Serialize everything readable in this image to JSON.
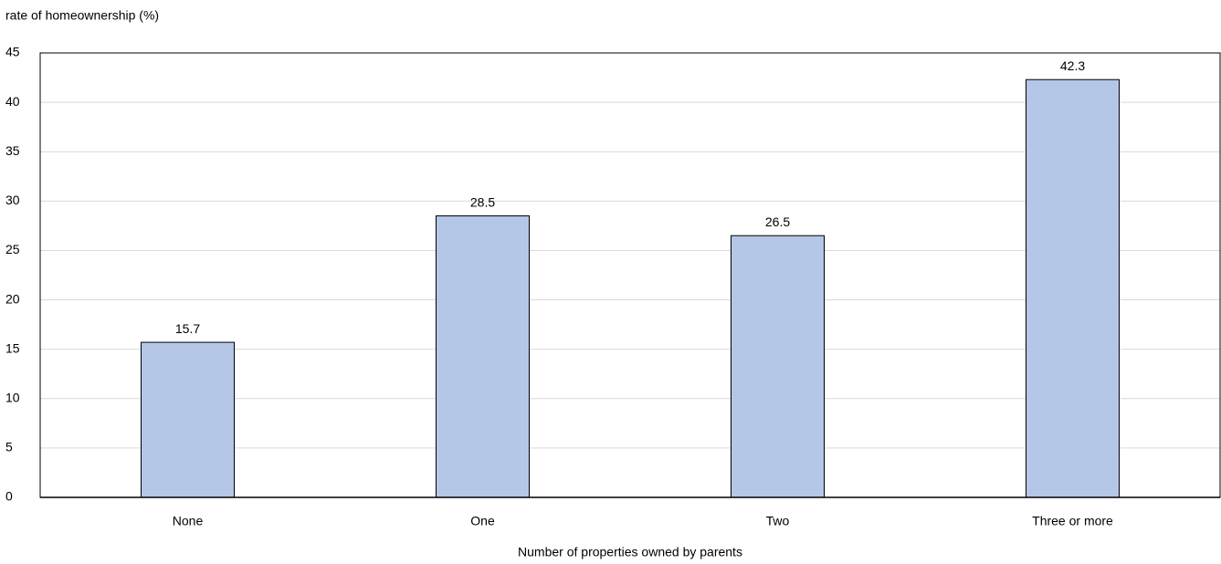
{
  "chart_data": {
    "type": "bar",
    "y_axis_label": "rate of homeownership (%)",
    "x_axis_label": "Number of properties owned by parents",
    "categories": [
      "None",
      "One",
      "Two",
      "Three or more"
    ],
    "values": [
      15.7,
      28.5,
      26.5,
      42.3
    ],
    "color": "#b4c7e7",
    "ylim": [
      0,
      45
    ],
    "yticks": [
      0,
      5,
      10,
      15,
      20,
      25,
      30,
      35,
      40,
      45
    ],
    "grid": true
  }
}
